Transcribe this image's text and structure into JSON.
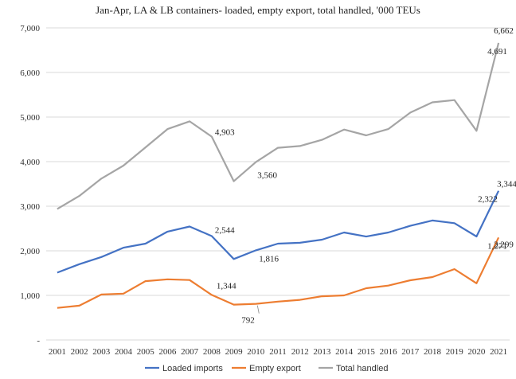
{
  "chart_data": {
    "type": "line",
    "title": "Jan-Apr, LA & LB containers- loaded, empty export, total handled, '000 TEUs",
    "xlabel": "",
    "ylabel": "",
    "x": [
      "2001",
      "2002",
      "2003",
      "2004",
      "2005",
      "2006",
      "2007",
      "2008",
      "2009",
      "2010",
      "2011",
      "2012",
      "2013",
      "2014",
      "2015",
      "2016",
      "2017",
      "2018",
      "2019",
      "2020",
      "2021"
    ],
    "ylim": [
      0,
      7000
    ],
    "yticks": [
      {
        "value": 0,
        "label": "-"
      },
      {
        "value": 1000,
        "label": "1,000"
      },
      {
        "value": 2000,
        "label": "2,000"
      },
      {
        "value": 3000,
        "label": "3,000"
      },
      {
        "value": 4000,
        "label": "4,000"
      },
      {
        "value": 5000,
        "label": "5,000"
      },
      {
        "value": 6000,
        "label": "6,000"
      },
      {
        "value": 7000,
        "label": "7,000"
      }
    ],
    "grid": true,
    "legend_position": "bottom",
    "series": [
      {
        "name": "Loaded imports",
        "color": "#4472C4",
        "values": [
          1510,
          1700,
          1860,
          2070,
          2160,
          2430,
          2544,
          2330,
          1816,
          2010,
          2160,
          2180,
          2250,
          2410,
          2320,
          2410,
          2560,
          2680,
          2620,
          2322,
          3344
        ],
        "labels": [
          {
            "index": 7,
            "text": "2,544"
          },
          {
            "index": 9,
            "text": "1,816"
          },
          {
            "index": 20,
            "text": "2,322"
          },
          {
            "index": 21,
            "text": "3,344"
          }
        ]
      },
      {
        "name": "Empty export",
        "color": "#ED7D31",
        "values": [
          720,
          770,
          1020,
          1040,
          1320,
          1360,
          1344,
          1010,
          792,
          810,
          860,
          900,
          980,
          1000,
          1160,
          1220,
          1340,
          1410,
          1590,
          1271,
          2299
        ],
        "labels": [
          {
            "index": 7,
            "text": "1,344"
          },
          {
            "index": 9,
            "text": "792"
          },
          {
            "index": 20,
            "text": "1,271"
          },
          {
            "index": 21,
            "text": "2,299"
          }
        ]
      },
      {
        "name": "Total handled",
        "color": "#A5A5A5",
        "values": [
          2940,
          3230,
          3620,
          3910,
          4320,
          4730,
          4903,
          4560,
          3560,
          3990,
          4310,
          4350,
          4490,
          4720,
          4590,
          4730,
          5100,
          5330,
          5380,
          4691,
          6662
        ],
        "labels": [
          {
            "index": 7,
            "text": "4,903"
          },
          {
            "index": 9,
            "text": "3,560"
          },
          {
            "index": 20,
            "text": "4,691"
          },
          {
            "index": 21,
            "text": "6,662"
          }
        ]
      }
    ]
  }
}
